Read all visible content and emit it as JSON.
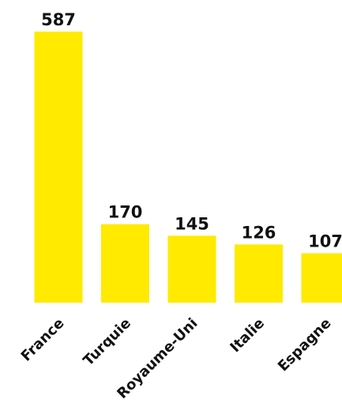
{
  "chart_data": {
    "type": "bar",
    "categories": [
      "France",
      "Turquie",
      "Royaume-Uni",
      "Italie",
      "Espagne"
    ],
    "values": [
      587,
      170,
      145,
      126,
      107
    ],
    "value_labels": [
      "587",
      "170",
      "145",
      "126",
      "107"
    ],
    "title": "",
    "xlabel": "",
    "ylabel": "",
    "ylim": [
      0,
      587
    ],
    "grid": false,
    "legend": "none",
    "bar_color": "#FFEA00",
    "text_color": "#111111",
    "tick_label_rotation": "-45deg"
  }
}
